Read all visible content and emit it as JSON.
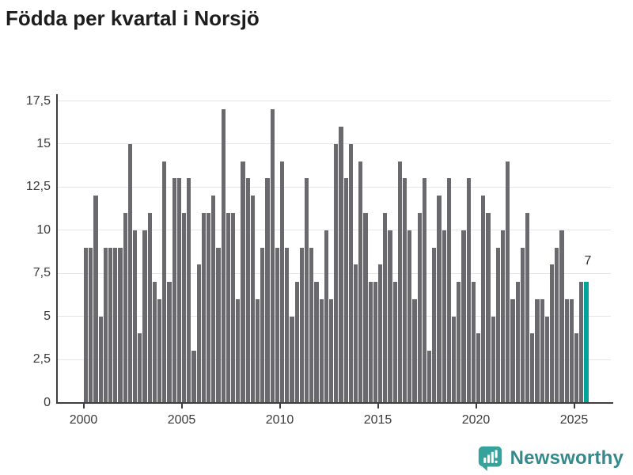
{
  "title": "Födda per kvartal i Norsjö",
  "logo": {
    "text": "Newsworthy"
  },
  "colors": {
    "bar": "#69696e",
    "highlight": "#00a29b",
    "gridline": "#e6e6e6",
    "axis": "#3f3f3f",
    "title_text": "#1d1d1d",
    "tick_text": "#3a3a3a",
    "logo_mark": "#35a39c",
    "logo_text": "#35898b",
    "background": "#ffffff"
  },
  "chart_data": {
    "type": "bar",
    "title": "Födda per kvartal i Norsjö",
    "frequency": "quarterly",
    "x_start": "2000-Q1",
    "x_end": "2025-Q3",
    "xlabel": "",
    "ylabel": "",
    "ylim": [
      0,
      17.5
    ],
    "grid": true,
    "legend": "none",
    "y_ticks": [
      0,
      2.5,
      5,
      7.5,
      10,
      12.5,
      15,
      17.5
    ],
    "y_tick_labels": [
      "0",
      "2,5",
      "5",
      "7,5",
      "10",
      "12,5",
      "15",
      "17,5"
    ],
    "x_tick_labels": [
      "2000",
      "2005",
      "2010",
      "2015",
      "2020",
      "2025"
    ],
    "series": [
      {
        "name": "Födda",
        "values": [
          9,
          9,
          12,
          5,
          9,
          9,
          9,
          9,
          11,
          15,
          10,
          4,
          10,
          11,
          7,
          6,
          14,
          7,
          13,
          13,
          11,
          13,
          3,
          8,
          11,
          11,
          12,
          9,
          17,
          11,
          11,
          6,
          14,
          13,
          12,
          6,
          9,
          13,
          17,
          9,
          14,
          9,
          5,
          7,
          9,
          13,
          9,
          7,
          6,
          10,
          6,
          15,
          16,
          13,
          15,
          8,
          14,
          11,
          7,
          7,
          8,
          11,
          10,
          7,
          14,
          13,
          10,
          6,
          11,
          13,
          3,
          9,
          12,
          10,
          13,
          5,
          7,
          10,
          13,
          7,
          4,
          12,
          11,
          5,
          9,
          10,
          14,
          6,
          7,
          9,
          11,
          4,
          6,
          6,
          5,
          8,
          9,
          10,
          6,
          6,
          4,
          7,
          7
        ]
      }
    ],
    "highlight_last_bar": true,
    "data_label": {
      "bar_index": 102,
      "text": "7"
    }
  }
}
